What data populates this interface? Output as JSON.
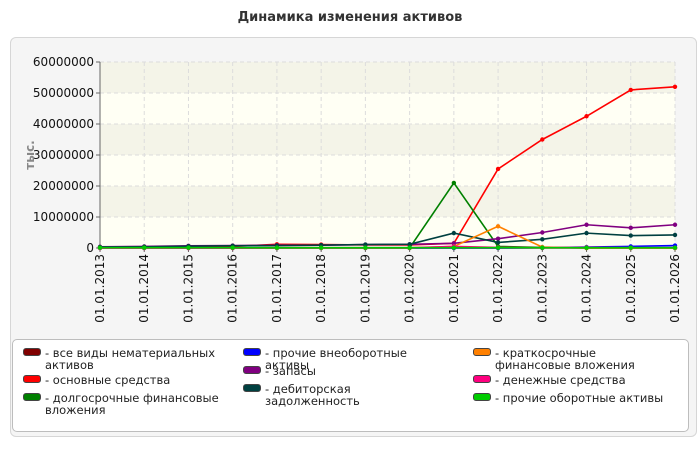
{
  "chart_data": {
    "type": "line",
    "title": "Динамика изменения активов",
    "ylabel": "тыс.",
    "xlabel": "",
    "x": [
      "01.01.2013",
      "01.01.2014",
      "01.01.2015",
      "01.01.2016",
      "01.01.2017",
      "01.01.2018",
      "01.01.2019",
      "01.01.2020",
      "01.01.2021",
      "01.01.2022",
      "01.01.2023",
      "01.01.2024",
      "01.01.2025",
      "01.01.2026"
    ],
    "ylim": [
      0,
      60000000
    ],
    "yticks": [
      "0",
      "10000000",
      "20000000",
      "30000000",
      "40000000",
      "50000000",
      "60000000"
    ],
    "grid": true,
    "legend_position": "bottom",
    "series": [
      {
        "name": "- все виды нематериальных активов",
        "color": "#800000",
        "values": [
          0,
          0,
          0,
          0,
          0,
          0,
          0,
          0,
          0,
          0,
          0,
          0,
          0,
          0
        ]
      },
      {
        "name": "- основные средства",
        "color": "#ff0000",
        "values": [
          100000,
          150000,
          200000,
          500000,
          1200000,
          1100000,
          1000000,
          1000000,
          1500000,
          25500000,
          35000000,
          42500000,
          51000000,
          52000000
        ]
      },
      {
        "name": "- долгосрочные финансовые вложения",
        "color": "#008000",
        "values": [
          0,
          0,
          0,
          0,
          0,
          0,
          0,
          0,
          21000000,
          500000,
          200000,
          0,
          0,
          0
        ]
      },
      {
        "name": "- прочие внеоборотные активы",
        "color": "#0000ff",
        "values": [
          0,
          0,
          0,
          0,
          0,
          0,
          0,
          0,
          0,
          0,
          100000,
          300000,
          500000,
          800000
        ]
      },
      {
        "name": "- запасы",
        "color": "#800080",
        "values": [
          400000,
          500000,
          700000,
          800000,
          900000,
          900000,
          1100000,
          1200000,
          1500000,
          3000000,
          5000000,
          7500000,
          6500000,
          7500000
        ]
      },
      {
        "name": "- дебиторская задолженность",
        "color": "#004040",
        "values": [
          300000,
          400000,
          600000,
          700000,
          800000,
          900000,
          1100000,
          1200000,
          4800000,
          1800000,
          2800000,
          4800000,
          4000000,
          4200000
        ]
      },
      {
        "name": "- краткосрочные финансовые вложения",
        "color": "#ff8000",
        "values": [
          0,
          0,
          0,
          0,
          0,
          0,
          0,
          0,
          500000,
          7000000,
          300000,
          0,
          0,
          0
        ]
      },
      {
        "name": "- денежные средства",
        "color": "#ff0080",
        "values": [
          0,
          0,
          0,
          0,
          100000,
          100000,
          100000,
          100000,
          500000,
          200000,
          100000,
          200000,
          100000,
          100000
        ]
      },
      {
        "name": "- прочие оборотные активы",
        "color": "#00cc00",
        "values": [
          100000,
          100000,
          100000,
          100000,
          100000,
          100000,
          100000,
          100000,
          100000,
          100000,
          100000,
          100000,
          100000,
          100000
        ]
      }
    ]
  }
}
